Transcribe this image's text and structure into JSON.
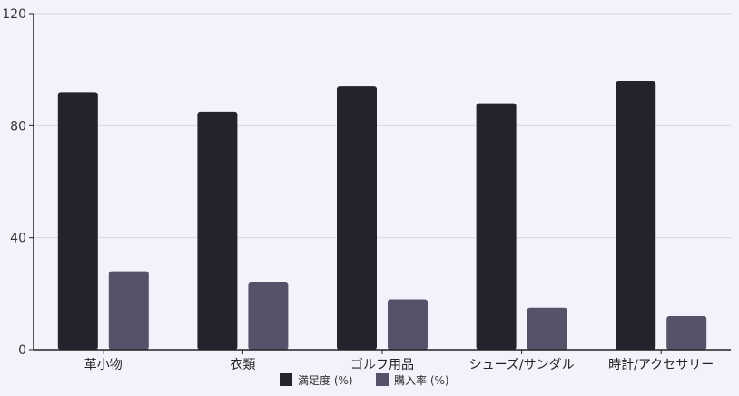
{
  "chart_data": {
    "type": "bar",
    "categories": [
      "革小物",
      "衣類",
      "ゴルフ用品",
      "シューズ/サンダル",
      "時計/アクセサリー"
    ],
    "series": [
      {
        "name": "満足度 (%)",
        "color": "#25222e",
        "values": [
          92,
          85,
          94,
          88,
          96
        ]
      },
      {
        "name": "購入率 (%)",
        "color": "#57526a",
        "values": [
          28,
          24,
          18,
          15,
          12
        ]
      }
    ],
    "ylim": [
      0,
      120
    ],
    "yticks": [
      "0",
      "40",
      "80",
      "120"
    ],
    "grid": true,
    "legend": "bottom-center"
  }
}
